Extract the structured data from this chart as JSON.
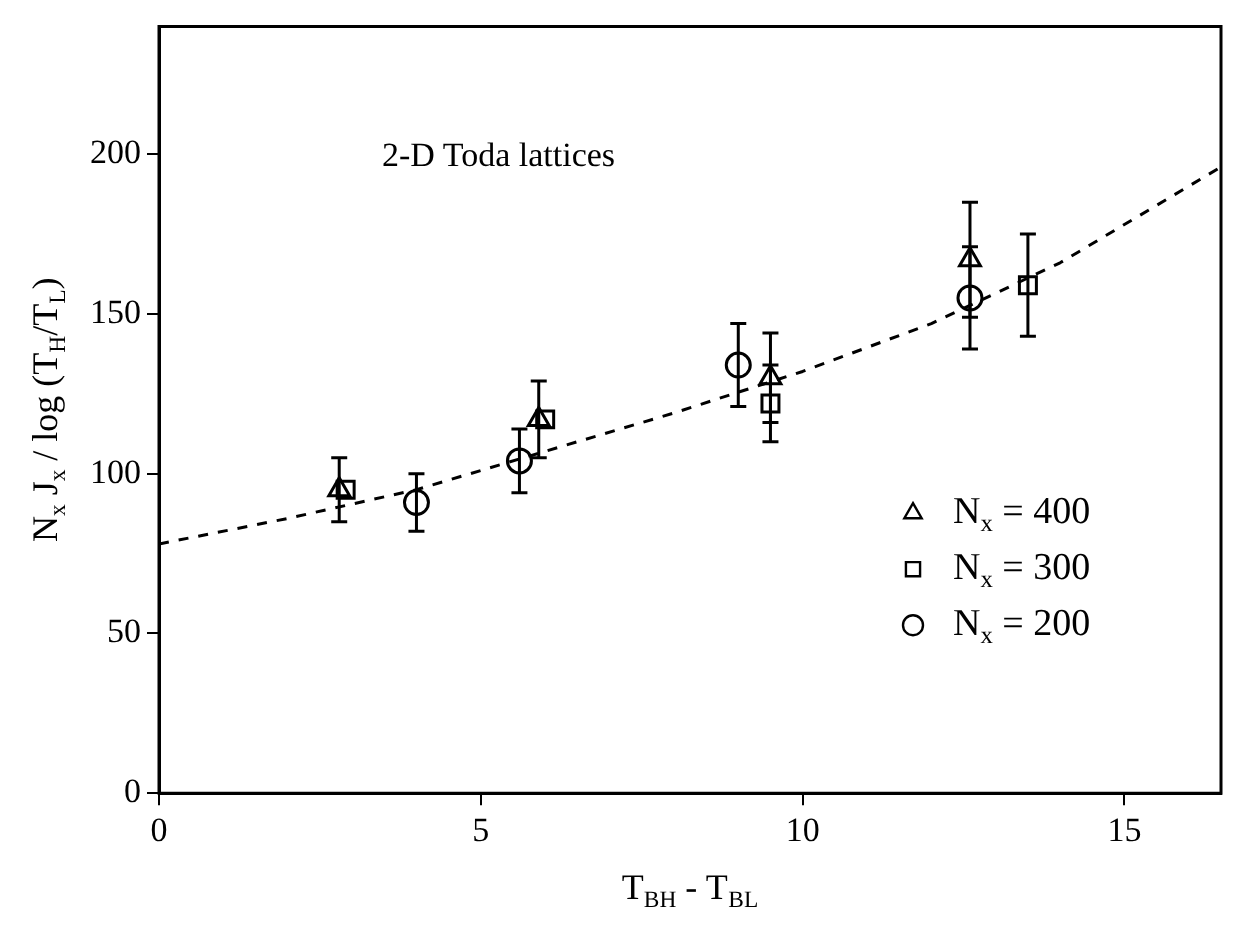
{
  "chart_data": {
    "type": "scatter",
    "xlabel": "T$_{BH}$ - T$_{BL}$",
    "ylabel": "N$_{x}$ J$_{x}$ / log (T$_{H}$/T$_{L}$)",
    "annotations": [
      "2-D Toda lattices"
    ],
    "xlim": [
      0,
      16.5
    ],
    "xticks": [
      0,
      5,
      10,
      15
    ],
    "ylim": [
      0,
      240
    ],
    "yticks": [
      0,
      50,
      100,
      150,
      200
    ],
    "grid": false,
    "legend": "bottom right",
    "series": [
      {
        "name": "N$_{x}$ = 400",
        "color": "#000000",
        "marker": "triangle",
        "x": [
          2.8,
          5.9,
          9.5,
          12.6
        ],
        "values": [
          95,
          117,
          130,
          167
        ],
        "errors": [
          10,
          12,
          14,
          18
        ]
      },
      {
        "name": "N$_{x}$ = 300",
        "color": "#000000",
        "marker": "square",
        "x": [
          2.9,
          6.0,
          9.5,
          13.5
        ],
        "values": [
          95,
          117,
          122,
          159
        ],
        "errors": [
          null,
          null,
          12,
          16
        ]
      },
      {
        "name": "N$_{x}$ = 200",
        "color": "#000000",
        "marker": "circle",
        "x": [
          4.0,
          5.6,
          9.0,
          12.6
        ],
        "values": [
          91,
          104,
          134,
          155
        ],
        "errors": [
          9,
          10,
          13,
          16
        ]
      },
      {
        "type": "line",
        "color": "#000000",
        "marker": "none",
        "line_style": "dashed",
        "x": [
          0,
          2,
          4,
          6,
          8,
          10,
          12,
          14,
          16.5
        ],
        "values": [
          78,
          86,
          95,
          107,
          119,
          132,
          147,
          166,
          196
        ]
      }
    ]
  }
}
